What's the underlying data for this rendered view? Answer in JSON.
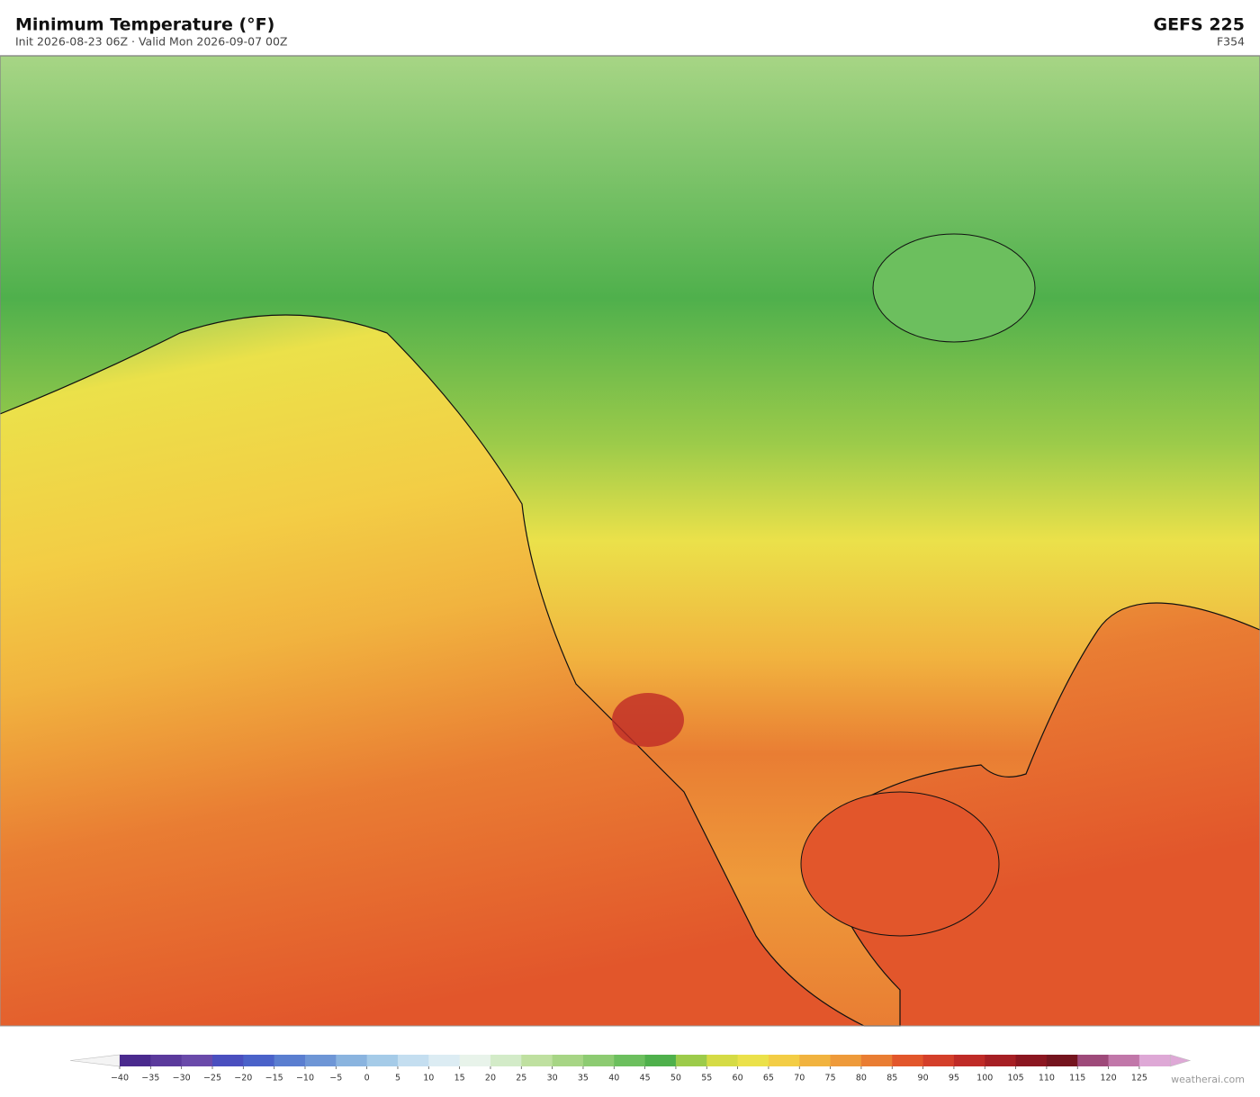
{
  "header": {
    "title": "Minimum Temperature  (°F)",
    "subtitle": "Init 2026-08-23 06Z  ·  Valid Mon 2026-09-07 00Z",
    "model": "GEFS  225",
    "frame": "F354"
  },
  "colorbar": {
    "ticks": [
      {
        "value": -40,
        "label": "−40"
      },
      {
        "value": -35,
        "label": "−35"
      },
      {
        "value": -30,
        "label": "−30"
      },
      {
        "value": -25,
        "label": "−25"
      },
      {
        "value": -20,
        "label": "−20"
      },
      {
        "value": -15,
        "label": "−15"
      },
      {
        "value": -10,
        "label": "−10"
      },
      {
        "value": -5,
        "label": "−5"
      },
      0,
      5,
      10,
      15,
      20,
      25,
      30,
      35,
      40,
      45,
      50,
      55,
      60,
      65,
      70,
      75,
      80,
      85,
      90,
      95,
      100,
      105,
      110,
      115,
      120,
      125
    ],
    "colors": [
      "#4a2a8e",
      "#5b3a9c",
      "#6a4aaa",
      "#4a4fbf",
      "#4a62c9",
      "#5a7ed0",
      "#6e96d6",
      "#8ab4df",
      "#a5cbe8",
      "#c4def0",
      "#dcecf3",
      "#e8f3ea",
      "#d3ebc8",
      "#bfe0a0",
      "#a7d585",
      "#8dcb72",
      "#6cbf5e",
      "#4fb04c",
      "#9ccb4a",
      "#d5db45",
      "#ebe14a",
      "#f3cd45",
      "#f1b33f",
      "#ee9a3a",
      "#e97d33",
      "#e2562b",
      "#d43f2a",
      "#bf2b27",
      "#a61f24",
      "#8b1620",
      "#74141e",
      "#9e4a7a",
      "#c177a9",
      "#dea8d6"
    ]
  },
  "footer": {
    "credit": "weatherai.com"
  }
}
